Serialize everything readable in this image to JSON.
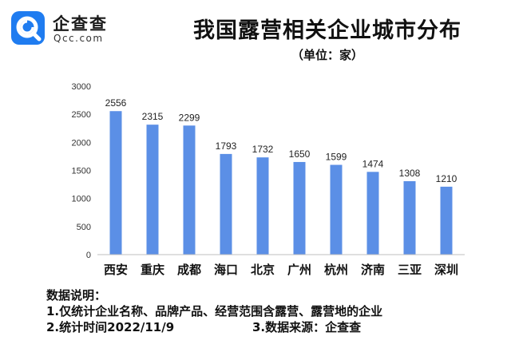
{
  "brand": {
    "name": "企查查",
    "domain": "Qcc.com",
    "logo_icon": "qcc-magnifier-logo-icon",
    "color": "#1f7cf0"
  },
  "chart_data": {
    "type": "bar",
    "title": "我国露营相关企业城市分布",
    "subtitle": "（单位：家）",
    "categories": [
      "西安",
      "重庆",
      "成都",
      "海口",
      "北京",
      "广州",
      "杭州",
      "济南",
      "三亚",
      "深圳"
    ],
    "values": [
      2556,
      2315,
      2299,
      1793,
      1732,
      1650,
      1599,
      1474,
      1308,
      1210
    ],
    "ylim": [
      0,
      3000
    ],
    "yticks": [
      0,
      500,
      1000,
      1500,
      2000,
      2500,
      3000
    ],
    "xlabel": "",
    "ylabel": "",
    "grid": false,
    "legend": "none",
    "bar_color": "#5b8fe6",
    "data_labels": true
  },
  "notes": {
    "heading": "数据说明：",
    "line1": "1.仅统计企业名称、品牌产品、经营范围含露营、露营地的企业",
    "line2": "2.统计时间2022/11/9",
    "line3": "3.数据来源：企查查"
  }
}
